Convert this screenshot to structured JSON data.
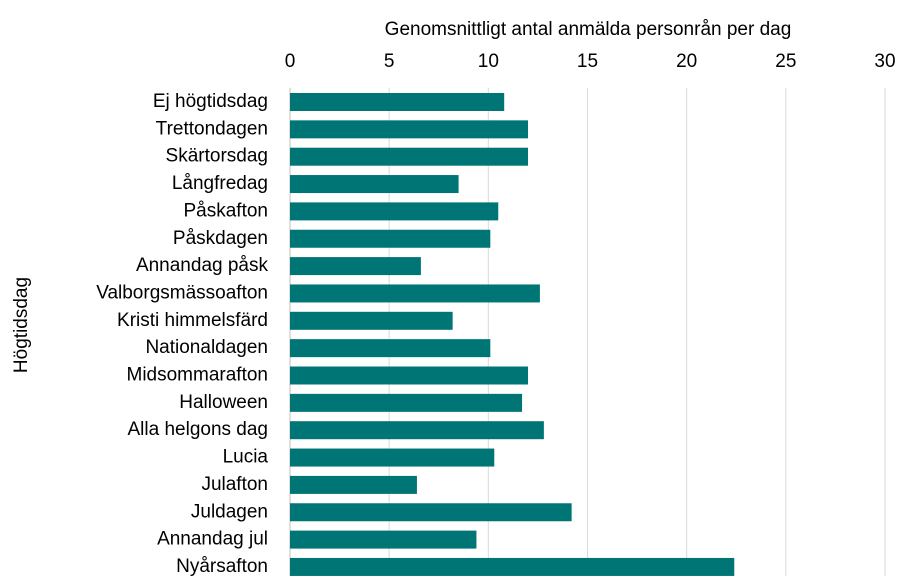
{
  "chart_data": {
    "type": "bar",
    "orientation": "horizontal",
    "x_label": "Genomsnittligt antal anmälda personrån per dag",
    "y_label": "Högtidsdag",
    "categories": [
      "Ej högtidsdag",
      "Trettondagen",
      "Skärtorsdag",
      "Långfredag",
      "Påskafton",
      "Påskdagen",
      "Annandag påsk",
      "Valborgsmässoafton",
      "Kristi himmelsfärd",
      "Nationaldagen",
      "Midsommarafton",
      "Halloween",
      "Alla helgons dag",
      "Lucia",
      "Julafton",
      "Juldagen",
      "Annandag jul",
      "Nyårsafton"
    ],
    "values": [
      10.8,
      12,
      12,
      8.5,
      10.5,
      10.1,
      6.6,
      12.6,
      8.2,
      10.1,
      12,
      11.7,
      12.8,
      10.3,
      6.4,
      14.2,
      9.4,
      22.4
    ],
    "color": "#007575",
    "xlim": [
      0,
      30
    ],
    "xticks": [
      0,
      5,
      10,
      15,
      20,
      25,
      30
    ],
    "grid": true
  }
}
